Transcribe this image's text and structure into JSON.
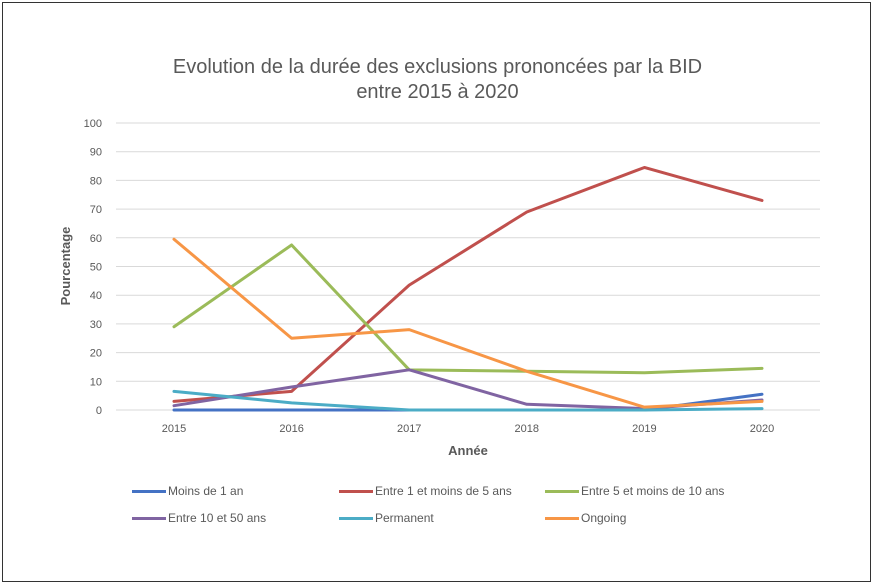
{
  "chart_data": {
    "type": "line",
    "title": "Evolution de la durée des exclusions prononcées par la BID",
    "subtitle": "entre 2015 à 2020",
    "xlabel": "Année",
    "ylabel": "Pourcentage",
    "categories": [
      "2015",
      "2016",
      "2017",
      "2018",
      "2019",
      "2020"
    ],
    "ylim": [
      0,
      100
    ],
    "yticks": [
      "0",
      "10",
      "20",
      "30",
      "40",
      "50",
      "60",
      "70",
      "80",
      "90",
      "100"
    ],
    "grid": true,
    "legend_position": "bottom",
    "series": [
      {
        "name": "Moins de 1 an",
        "color": "#4472C4",
        "values": [
          0,
          0,
          0,
          0,
          0,
          5.5
        ]
      },
      {
        "name": "Entre 1 et moins de 5 ans",
        "color": "#C0504D",
        "values": [
          3,
          6.5,
          43.5,
          69,
          84.5,
          73
        ]
      },
      {
        "name": "Entre 5 et moins de 10 ans",
        "color": "#9BBB59",
        "values": [
          29,
          57.5,
          14,
          13.5,
          13,
          14.5
        ]
      },
      {
        "name": "Entre 10 et 50 ans",
        "color": "#8064A2",
        "values": [
          1.5,
          8,
          14,
          2,
          0.5,
          3.5
        ]
      },
      {
        "name": "Permanent",
        "color": "#4BACC6",
        "values": [
          6.5,
          2.5,
          0,
          0,
          0,
          0.5
        ]
      },
      {
        "name": "Ongoing",
        "color": "#F79646",
        "values": [
          59.5,
          25,
          28,
          13.5,
          1,
          3
        ]
      }
    ]
  }
}
